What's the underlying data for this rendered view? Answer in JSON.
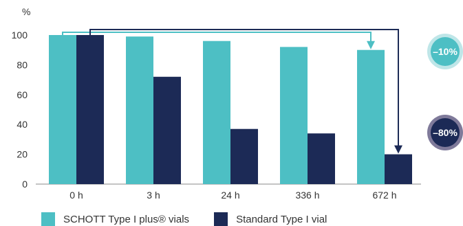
{
  "chart_data": {
    "type": "bar",
    "y_unit": "%",
    "categories": [
      "0 h",
      "3 h",
      "24 h",
      "336 h",
      "672 h"
    ],
    "series": [
      {
        "name": "SCHOTT Type I plus® vials",
        "color": "#4dbfc4",
        "values": [
          100,
          99,
          96,
          92,
          90
        ]
      },
      {
        "name": "Standard Type I vial",
        "color": "#1c2a56",
        "values": [
          100,
          72,
          37,
          34,
          20
        ]
      }
    ],
    "ylim": [
      0,
      100
    ],
    "yticks": [
      0,
      20,
      40,
      60,
      80,
      100
    ],
    "grid": false,
    "legend_position": "bottom-left",
    "annotations": [
      {
        "text": "–10%",
        "series": "SCHOTT Type I plus® vials",
        "color": "#4dbfc4",
        "ring_color": "#bfe6e8"
      },
      {
        "text": "–80%",
        "series": "Standard Type I vial",
        "color": "#1c2a56",
        "ring_color": "#7f7a9a"
      }
    ]
  }
}
